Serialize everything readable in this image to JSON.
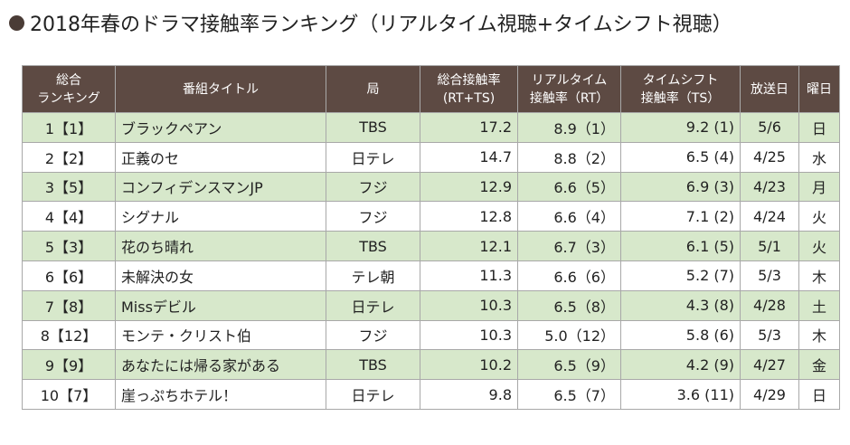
{
  "title": "2018年春のドラマ接触率ランキング（リアルタイム視聴+タイムシフト視聴）",
  "headers": {
    "rank_line1": "総合",
    "rank_line2": "ランキング",
    "program": "番組タイトル",
    "station": "局",
    "total_line1": "総合接触率",
    "total_line2": "(RT+TS)",
    "realtime_line1": "リアルタイム",
    "realtime_line2": "接触率（RT）",
    "timeshift_line1": "タイムシフト",
    "timeshift_line2": "接触率（TS）",
    "airdate": "放送日",
    "weekday": "曜日"
  },
  "rows": [
    {
      "rank": "1【1】",
      "title": "ブラックペアン",
      "station": "TBS",
      "total": "17.2",
      "rt": "8.9（1）",
      "ts": "9.2 (1)",
      "date": "5/6",
      "day": "日"
    },
    {
      "rank": "2【2】",
      "title": "正義のセ",
      "station": "日テレ",
      "total": "14.7",
      "rt": "8.8（2）",
      "ts": "6.5 (4)",
      "date": "4/25",
      "day": "水"
    },
    {
      "rank": "3【5】",
      "title": "コンフィデンスマンJP",
      "station": "フジ",
      "total": "12.9",
      "rt": "6.6（5）",
      "ts": "6.9 (3)",
      "date": "4/23",
      "day": "月"
    },
    {
      "rank": "4【4】",
      "title": "シグナル",
      "station": "フジ",
      "total": "12.8",
      "rt": "6.6（4）",
      "ts": "7.1 (2)",
      "date": "4/24",
      "day": "火"
    },
    {
      "rank": "5【3】",
      "title": "花のち晴れ",
      "station": "TBS",
      "total": "12.1",
      "rt": "6.7（3）",
      "ts": "6.1 (5)",
      "date": "5/1",
      "day": "火"
    },
    {
      "rank": "6【6】",
      "title": "未解決の女",
      "station": "テレ朝",
      "total": "11.3",
      "rt": "6.6（6）",
      "ts": "5.2 (7)",
      "date": "5/3",
      "day": "木"
    },
    {
      "rank": "7【8】",
      "title": "Missデビル",
      "station": "日テレ",
      "total": "10.3",
      "rt": "6.5（8）",
      "ts": "4.3 (8)",
      "date": "4/28",
      "day": "土"
    },
    {
      "rank": "8【12】",
      "title": "モンテ・クリスト伯",
      "station": "フジ",
      "total": "10.3",
      "rt": "5.0（12）",
      "ts": "5.8 (6)",
      "date": "5/3",
      "day": "木"
    },
    {
      "rank": "9【9】",
      "title": "あなたには帰る家がある",
      "station": "TBS",
      "total": "10.2",
      "rt": "6.5（9）",
      "ts": "4.2 (9)",
      "date": "4/27",
      "day": "金"
    },
    {
      "rank": "10【7】",
      "title": "崖っぷちホテル！",
      "station": "日テレ",
      "total": "9.8",
      "rt": "6.5（7）",
      "ts": "3.6 (11)",
      "date": "4/29",
      "day": "日"
    }
  ],
  "colors": {
    "header_bg": "#5d4a43",
    "row_alt_bg": "#d7e8cb",
    "bullet": "#4a3c36"
  }
}
